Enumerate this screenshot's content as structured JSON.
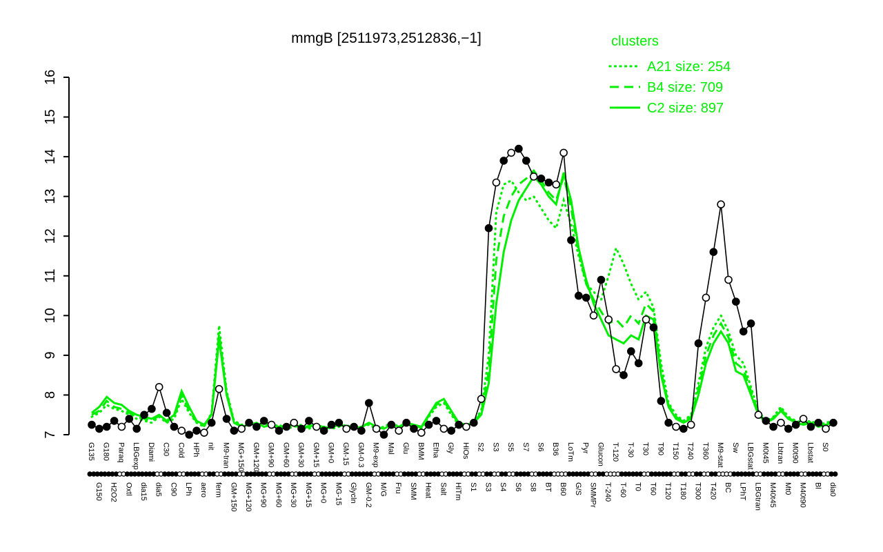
{
  "title": "mmgB [2511973,2512836,−1]",
  "legend": {
    "title": "clusters",
    "entries": [
      {
        "label": "A21 size: 254",
        "style": "dotted"
      },
      {
        "label": "B4 size: 709",
        "style": "dashed"
      },
      {
        "label": "C2 size: 897",
        "style": "solid"
      }
    ]
  },
  "colors": {
    "cluster": "#00ee00",
    "gene_line": "#000000",
    "open_marker_fill": "#ffffff"
  },
  "chart_data": {
    "type": "line",
    "title": "mmgB [2511973,2512836,−1]",
    "xlabel": "",
    "ylabel": "",
    "ylim": [
      7,
      16
    ],
    "yticks": [
      7,
      8,
      9,
      10,
      11,
      12,
      13,
      14,
      15,
      16
    ],
    "grid": false,
    "legend_position": "top-right",
    "categories": [
      "G135",
      "G150",
      "G180",
      "H2O2",
      "Paraq",
      "Oxtl",
      "LBGexp",
      "dia15",
      "Diami",
      "dia5",
      "C30",
      "C90",
      "Cold",
      "LPh",
      "HPh",
      "aero",
      "nit",
      "ferm",
      "M9-tran",
      "GM+150",
      "MG+150",
      "MG+120",
      "GM+120",
      "MG+90",
      "GM+90",
      "MG+60",
      "GM+60",
      "MG+30",
      "GM+30",
      "MG+15",
      "GM+15",
      "MG+0",
      "GM+0",
      "MG-15",
      "GM-15",
      "Glycln",
      "GM-0.3",
      "GM-0.2",
      "M9-exp",
      "M/G",
      "Mal",
      "Fru",
      "Glu",
      "SMM",
      "BMM",
      "Heat",
      "Etha",
      "Salt",
      "Gly",
      "HiTm",
      "HiOs",
      "S1",
      "S2",
      "S3",
      "S3",
      "S4",
      "S5",
      "S6",
      "S7",
      "S8",
      "S6",
      "BT",
      "B36",
      "B60",
      "LoTm",
      "G/S",
      "Pyr",
      "SMMPr",
      "Glucon",
      "T-240",
      "T-120",
      "T-60",
      "T-30",
      "T0",
      "T30",
      "T60",
      "T90",
      "T120",
      "T150",
      "T180",
      "T240",
      "T300",
      "T360",
      "T420",
      "M9-stat",
      "BC",
      "Sw",
      "LPhT",
      "LBGstat",
      "LBGtran",
      "M0t45",
      "M40t45",
      "Lbtran",
      "Mt0",
      "M0t90",
      "M40t90",
      "Lbstat",
      "Bl",
      "S0",
      "dia0"
    ],
    "series": [
      {
        "name": "A21",
        "style": "dotted",
        "color": "cluster",
        "values": [
          7.45,
          7.55,
          7.75,
          7.65,
          7.6,
          7.5,
          7.4,
          7.35,
          7.3,
          7.45,
          7.3,
          7.4,
          7.9,
          7.55,
          7.3,
          7.2,
          7.55,
          9.75,
          8.1,
          7.35,
          7.25,
          7.3,
          7.25,
          7.3,
          7.2,
          7.25,
          7.15,
          7.2,
          7.25,
          7.15,
          7.25,
          7.2,
          7.15,
          7.2,
          7.25,
          7.15,
          7.2,
          7.25,
          7.15,
          7.2,
          7.3,
          7.2,
          7.25,
          7.2,
          7.15,
          7.45,
          7.7,
          7.8,
          7.5,
          7.25,
          7.2,
          7.35,
          7.6,
          9.0,
          12.6,
          13.3,
          13.4,
          13.1,
          12.9,
          13.0,
          12.7,
          12.4,
          12.2,
          12.9,
          12.3,
          11.5,
          10.8,
          10.6,
          10.4,
          11.0,
          11.7,
          11.3,
          10.8,
          10.4,
          10.6,
          10.2,
          8.8,
          7.8,
          7.5,
          7.35,
          7.5,
          8.3,
          9.2,
          9.7,
          10.0,
          9.6,
          9.0,
          8.8,
          8.2,
          7.6,
          7.35,
          7.45,
          7.7,
          7.45,
          7.35,
          7.3,
          7.35,
          7.25,
          7.3,
          7.35
        ]
      },
      {
        "name": "B4",
        "style": "dashed",
        "color": "cluster",
        "values": [
          7.5,
          7.6,
          7.85,
          7.7,
          7.65,
          7.55,
          7.45,
          7.4,
          7.35,
          7.48,
          7.32,
          7.45,
          8.0,
          7.6,
          7.32,
          7.22,
          7.52,
          9.55,
          8.05,
          7.32,
          7.22,
          7.28,
          7.26,
          7.3,
          7.22,
          7.2,
          7.22,
          7.26,
          7.18,
          7.22,
          7.26,
          7.18,
          7.2,
          7.24,
          7.2,
          7.16,
          7.2,
          7.28,
          7.18,
          7.16,
          7.28,
          7.2,
          7.28,
          7.22,
          7.18,
          7.48,
          7.75,
          7.85,
          7.55,
          7.28,
          7.22,
          7.32,
          7.55,
          8.6,
          11.4,
          12.5,
          13.0,
          13.3,
          13.45,
          13.65,
          13.4,
          13.1,
          12.9,
          13.5,
          12.7,
          11.6,
          10.8,
          10.4,
          10.1,
          9.8,
          9.9,
          9.7,
          10.0,
          9.8,
          10.3,
          10.1,
          8.6,
          7.75,
          7.45,
          7.32,
          7.45,
          8.15,
          9.0,
          9.5,
          9.8,
          9.45,
          8.8,
          8.65,
          8.1,
          7.55,
          7.32,
          7.42,
          7.65,
          7.42,
          7.32,
          7.28,
          7.32,
          7.22,
          7.28,
          7.32
        ]
      },
      {
        "name": "C2",
        "style": "solid",
        "color": "cluster",
        "values": [
          7.55,
          7.7,
          7.95,
          7.8,
          7.75,
          7.6,
          7.5,
          7.45,
          7.4,
          7.5,
          7.35,
          7.5,
          8.1,
          7.7,
          7.35,
          7.25,
          7.5,
          9.4,
          8.0,
          7.3,
          7.2,
          7.25,
          7.3,
          7.2,
          7.25,
          7.15,
          7.2,
          7.25,
          7.15,
          7.2,
          7.25,
          7.15,
          7.2,
          7.25,
          7.2,
          7.15,
          7.2,
          7.3,
          7.2,
          7.15,
          7.25,
          7.2,
          7.3,
          7.25,
          7.2,
          7.5,
          7.8,
          7.9,
          7.6,
          7.3,
          7.25,
          7.3,
          7.5,
          8.3,
          10.3,
          11.6,
          12.4,
          12.9,
          13.2,
          13.5,
          13.3,
          13.0,
          12.8,
          13.6,
          12.9,
          11.7,
          10.9,
          10.3,
          9.9,
          9.5,
          9.4,
          9.3,
          9.5,
          9.4,
          10.0,
          9.9,
          8.5,
          7.7,
          7.4,
          7.3,
          7.4,
          8.0,
          8.8,
          9.3,
          9.6,
          9.3,
          8.6,
          8.5,
          8.0,
          7.5,
          7.3,
          7.4,
          7.6,
          7.4,
          7.3,
          7.25,
          7.3,
          7.2,
          7.25,
          7.3
        ]
      },
      {
        "name": "mmgB",
        "style": "markers",
        "color": "black",
        "values": [
          7.25,
          7.15,
          7.2,
          7.35,
          7.2,
          7.4,
          7.15,
          7.5,
          7.65,
          8.2,
          7.55,
          7.2,
          7.1,
          7.0,
          7.1,
          7.05,
          7.3,
          8.15,
          7.4,
          7.1,
          7.15,
          7.3,
          7.2,
          7.35,
          7.25,
          7.1,
          7.2,
          7.3,
          7.15,
          7.35,
          7.2,
          7.1,
          7.25,
          7.3,
          7.15,
          7.2,
          7.1,
          7.8,
          7.15,
          7.0,
          7.25,
          7.1,
          7.3,
          7.15,
          7.05,
          7.25,
          7.35,
          7.15,
          7.1,
          7.25,
          7.2,
          7.3,
          7.9,
          12.2,
          13.35,
          13.9,
          14.1,
          14.2,
          13.9,
          13.5,
          13.45,
          13.35,
          13.3,
          14.1,
          11.9,
          10.5,
          10.45,
          10.0,
          10.9,
          9.9,
          8.65,
          8.5,
          9.1,
          8.8,
          9.9,
          9.7,
          7.85,
          7.3,
          7.2,
          7.15,
          7.25,
          9.3,
          10.45,
          11.6,
          12.8,
          10.9,
          10.35,
          9.6,
          9.8,
          7.5,
          7.35,
          7.2,
          7.3,
          7.15,
          7.25,
          7.4,
          7.2,
          7.3,
          7.15,
          7.3
        ],
        "markers": [
          "f",
          "f",
          "f",
          "f",
          "o",
          "f",
          "f",
          "f",
          "f",
          "o",
          "f",
          "f",
          "o",
          "f",
          "f",
          "o",
          "f",
          "o",
          "f",
          "f",
          "o",
          "f",
          "f",
          "f",
          "o",
          "f",
          "f",
          "o",
          "f",
          "f",
          "o",
          "f",
          "f",
          "f",
          "o",
          "f",
          "f",
          "f",
          "o",
          "f",
          "f",
          "o",
          "f",
          "f",
          "o",
          "f",
          "f",
          "o",
          "f",
          "f",
          "o",
          "f",
          "o",
          "f",
          "o",
          "f",
          "o",
          "f",
          "f",
          "o",
          "f",
          "f",
          "o",
          "o",
          "f",
          "f",
          "f",
          "o",
          "f",
          "o",
          "o",
          "f",
          "f",
          "f",
          "o",
          "f",
          "f",
          "f",
          "o",
          "f",
          "o",
          "f",
          "o",
          "f",
          "o",
          "o",
          "f",
          "f",
          "f",
          "o",
          "f",
          "f",
          "o",
          "f",
          "f",
          "o",
          "f",
          "f",
          "o",
          "f"
        ]
      }
    ]
  }
}
